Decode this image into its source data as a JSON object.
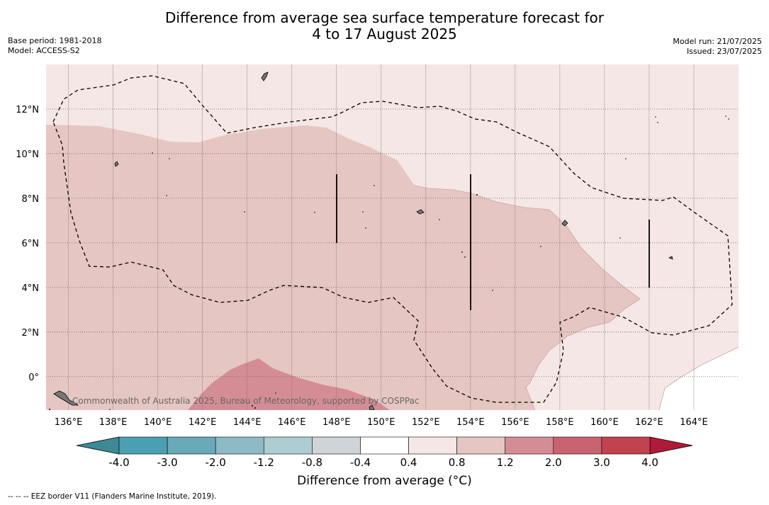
{
  "header": {
    "title_line1": "Difference from average sea surface temperature forecast for",
    "title_line2": "4 to 17 August 2025",
    "base_period": "Base period: 1981-2018",
    "model": "Model: ACCESS-S2",
    "model_run": "Model run: 21/07/2025",
    "issued": "Issued: 23/07/2025"
  },
  "map": {
    "lon_range": [
      135,
      166
    ],
    "lat_range": [
      -1.5,
      14
    ],
    "lon_ticks": [
      136,
      138,
      140,
      142,
      144,
      146,
      148,
      150,
      152,
      154,
      156,
      158,
      160,
      162,
      164
    ],
    "lon_tick_labels": [
      "136°E",
      "138°E",
      "140°E",
      "142°E",
      "144°E",
      "146°E",
      "148°E",
      "150°E",
      "152°E",
      "154°E",
      "156°E",
      "158°E",
      "160°E",
      "162°E",
      "164°E"
    ],
    "lat_ticks": [
      12,
      10,
      8,
      6,
      4,
      2,
      0
    ],
    "lat_tick_labels": [
      "12°N",
      "10°N",
      "8°N",
      "6°N",
      "4°N",
      "2°N",
      "0°"
    ],
    "credit": "Commonwealth of Australia 2025, Bureau of Meteorology, supported by COSPPac",
    "grid": true,
    "anomaly_zones": [
      {
        "range": "0.4 to 0.8",
        "color": "#f4e7e5"
      },
      {
        "range": "0.8 to 1.2",
        "color": "#e6c6c2"
      },
      {
        "range": "1.2 to 2.0",
        "color": "#d48d94"
      },
      {
        "range": "-0.4 to 0.4",
        "color": "#ffffff"
      }
    ]
  },
  "colorbar": {
    "ticks": [
      "-4.0",
      "-3.0",
      "-2.0",
      "-1.2",
      "-0.8",
      "-0.4",
      "0.4",
      "0.8",
      "1.2",
      "2.0",
      "3.0",
      "4.0"
    ],
    "colors": [
      "#4aa0b2",
      "#68a9ba",
      "#8cbac5",
      "#aecdd1",
      "#cfd4d6",
      "#ffffff",
      "#f4e7e5",
      "#e6c6c2",
      "#d48d94",
      "#c9636f",
      "#c0434f"
    ],
    "under_color": "#3e8a94",
    "over_color": "#b01a38",
    "title": "Difference from average (°C)"
  },
  "footnote": "-- -- -- EEZ border V11 (Flanders Marine Institute, 2019)."
}
